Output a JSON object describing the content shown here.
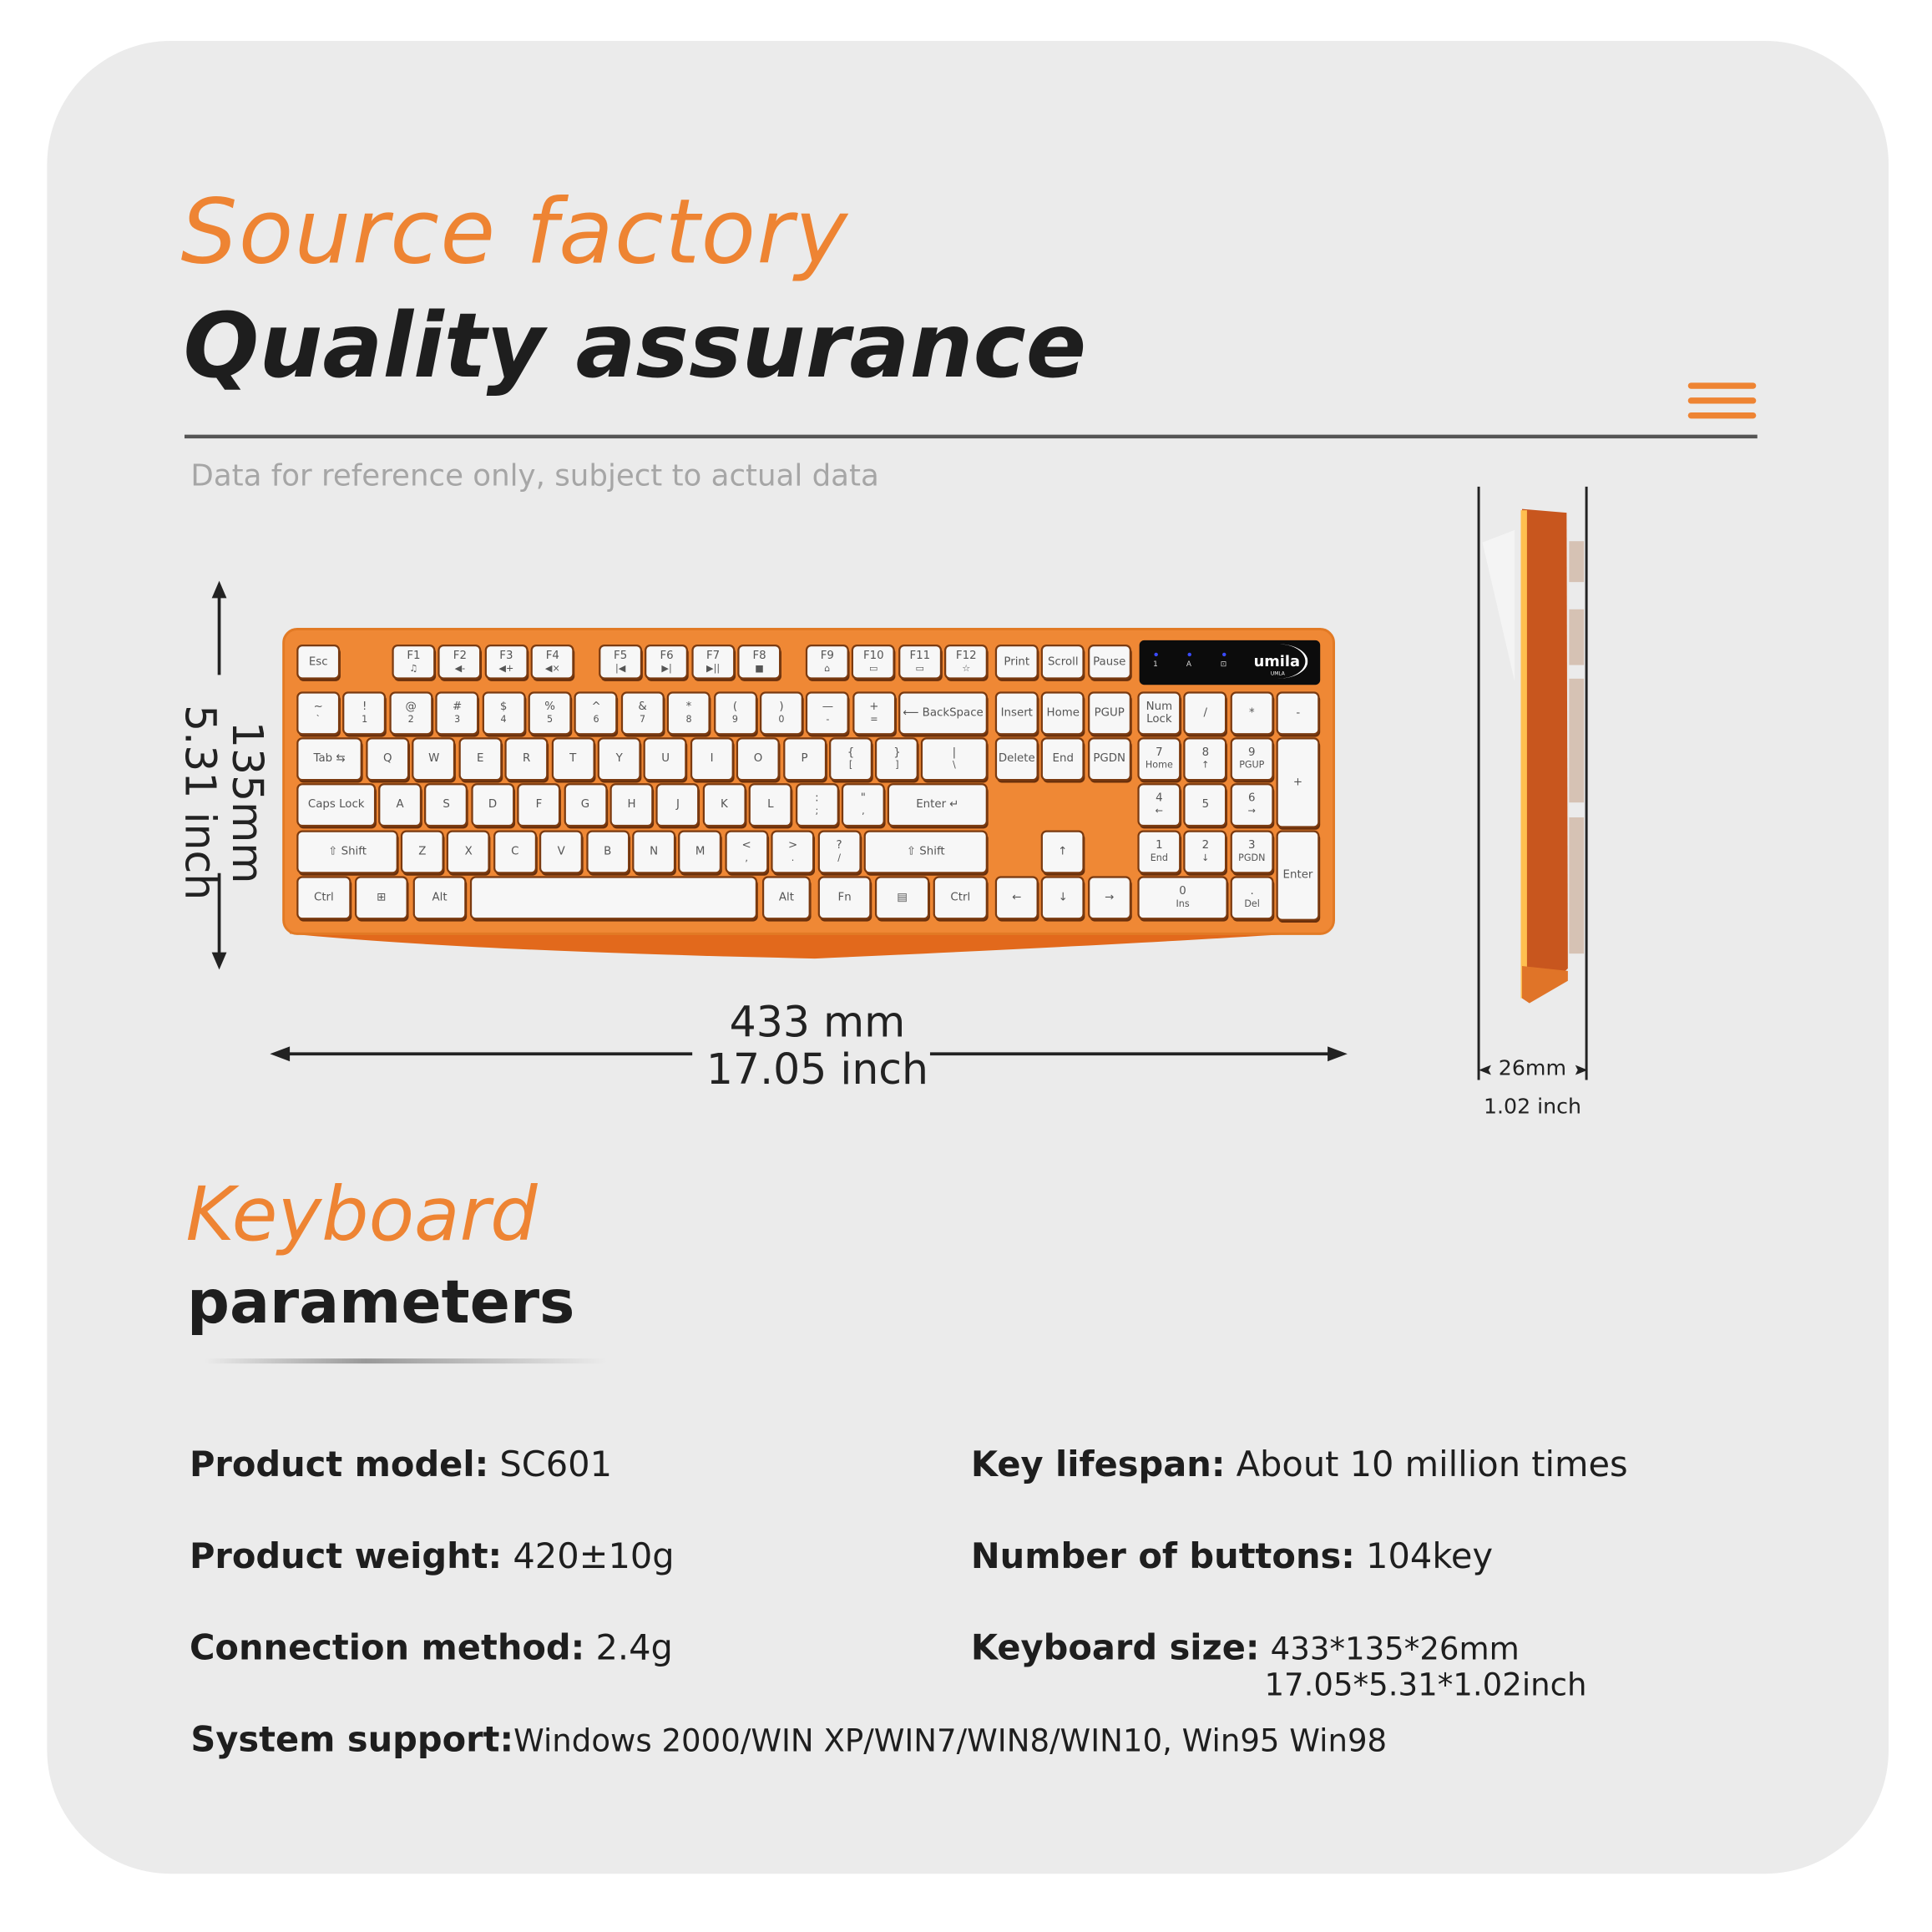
{
  "header": {
    "title_orange": "Source factory",
    "title_black": "Quality assurance",
    "menu_icon": "hamburger-menu-icon",
    "note": "Data for reference only, subject to actual data"
  },
  "colors": {
    "accent": "#ee8433",
    "card": "#ebebeb",
    "text": "#1e1e1e",
    "keyboard_body": "#ef8835"
  },
  "dimensions": {
    "height_mm": "135mm",
    "height_inch": "5.31 inch",
    "width_mm": "433 mm",
    "width_inch": "17.05 inch",
    "depth_mm": "26mm",
    "depth_inch": "1.02 inch"
  },
  "keyboard": {
    "brand": "umila",
    "brand_sub": "UMLA",
    "indicators": [
      "1",
      "A",
      "⊡"
    ],
    "rows": [
      [
        {
          "label": "Esc"
        },
        {
          "label": "F1",
          "sub": "♫"
        },
        {
          "label": "F2",
          "sub": "◀-"
        },
        {
          "label": "F3",
          "sub": "◀+"
        },
        {
          "label": "F4",
          "sub": "◀×"
        },
        {
          "label": "F5",
          "sub": "|◀"
        },
        {
          "label": "F6",
          "sub": "▶|"
        },
        {
          "label": "F7",
          "sub": "▶||"
        },
        {
          "label": "F8",
          "sub": "■"
        },
        {
          "label": "F9",
          "sub": "⌂"
        },
        {
          "label": "F10",
          "sub": "▭"
        },
        {
          "label": "F11",
          "sub": "▭"
        },
        {
          "label": "F12",
          "sub": "☆"
        },
        {
          "label": "Print"
        },
        {
          "label": "Scroll"
        },
        {
          "label": "Pause"
        }
      ],
      [
        {
          "label": "~",
          "sub": "`"
        },
        {
          "label": "!",
          "sub": "1"
        },
        {
          "label": "@",
          "sub": "2"
        },
        {
          "label": "#",
          "sub": "3"
        },
        {
          "label": "$",
          "sub": "4"
        },
        {
          "label": "%",
          "sub": "5"
        },
        {
          "label": "^",
          "sub": "6"
        },
        {
          "label": "&",
          "sub": "7"
        },
        {
          "label": "*",
          "sub": "8"
        },
        {
          "label": "(",
          "sub": "9"
        },
        {
          "label": ")",
          "sub": "0"
        },
        {
          "label": "—",
          "sub": "-"
        },
        {
          "label": "+",
          "sub": "="
        },
        {
          "label": "⟵ BackSpace"
        },
        {
          "label": "Insert"
        },
        {
          "label": "Home"
        },
        {
          "label": "PGUP"
        },
        {
          "label": "Num Lock"
        },
        {
          "label": "/"
        },
        {
          "label": "*"
        },
        {
          "label": "-"
        }
      ],
      [
        {
          "label": "Tab ⇆"
        },
        {
          "label": "Q"
        },
        {
          "label": "W"
        },
        {
          "label": "E"
        },
        {
          "label": "R"
        },
        {
          "label": "T"
        },
        {
          "label": "Y"
        },
        {
          "label": "U"
        },
        {
          "label": "I"
        },
        {
          "label": "O"
        },
        {
          "label": "P"
        },
        {
          "label": "{",
          "sub": "["
        },
        {
          "label": "}",
          "sub": "]"
        },
        {
          "label": "|",
          "sub": "\\"
        },
        {
          "label": "Delete"
        },
        {
          "label": "End"
        },
        {
          "label": "PGDN"
        },
        {
          "label": "7",
          "sub": "Home"
        },
        {
          "label": "8",
          "sub": "↑"
        },
        {
          "label": "9",
          "sub": "PGUP"
        },
        {
          "label": "+"
        }
      ],
      [
        {
          "label": "Caps Lock"
        },
        {
          "label": "A"
        },
        {
          "label": "S"
        },
        {
          "label": "D"
        },
        {
          "label": "F"
        },
        {
          "label": "G"
        },
        {
          "label": "H"
        },
        {
          "label": "J"
        },
        {
          "label": "K"
        },
        {
          "label": "L"
        },
        {
          "label": ":",
          "sub": ";"
        },
        {
          "label": "\"",
          "sub": ","
        },
        {
          "label": "Enter ↵"
        },
        {
          "label": "4",
          "sub": "←"
        },
        {
          "label": "5"
        },
        {
          "label": "6",
          "sub": "→"
        }
      ],
      [
        {
          "label": "⇧ Shift"
        },
        {
          "label": "Z"
        },
        {
          "label": "X"
        },
        {
          "label": "C"
        },
        {
          "label": "V"
        },
        {
          "label": "B"
        },
        {
          "label": "N"
        },
        {
          "label": "M"
        },
        {
          "label": "<",
          "sub": ","
        },
        {
          "label": ">",
          "sub": "."
        },
        {
          "label": "?",
          "sub": "/"
        },
        {
          "label": "⇧ Shift"
        },
        {
          "label": "↑"
        },
        {
          "label": "1",
          "sub": "End"
        },
        {
          "label": "2",
          "sub": "↓"
        },
        {
          "label": "3",
          "sub": "PGDN"
        },
        {
          "label": "Enter"
        }
      ],
      [
        {
          "label": "Ctrl"
        },
        {
          "label": "⊞"
        },
        {
          "label": "Alt"
        },
        {
          "label": ""
        },
        {
          "label": "Alt"
        },
        {
          "label": "Fn"
        },
        {
          "label": "▤"
        },
        {
          "label": "Ctrl"
        },
        {
          "label": "←"
        },
        {
          "label": "↓"
        },
        {
          "label": "→"
        },
        {
          "label": "0",
          "sub": "Ins"
        },
        {
          "label": ".",
          "sub": "Del"
        }
      ]
    ]
  },
  "params": {
    "section_title_orange": "Keyboard",
    "section_title_black": "parameters",
    "items": [
      {
        "label": "Product model:",
        "value": "SC601"
      },
      {
        "label": "Key lifespan:",
        "value": "About 10 million times"
      },
      {
        "label": "Product weight:",
        "value": "420±10g"
      },
      {
        "label": "Number of buttons:",
        "value": "104key"
      },
      {
        "label": "Connection method:",
        "value": "2.4g"
      }
    ],
    "keyboard_size": {
      "label": "Keyboard size:",
      "value_line1": "433*135*26mm",
      "value_line2": "17.05*5.31*1.02inch"
    },
    "system": {
      "label": "System support:",
      "value": "Windows 2000/WIN XP/WIN7/WIN8/WIN10, Win95 Win98"
    }
  }
}
